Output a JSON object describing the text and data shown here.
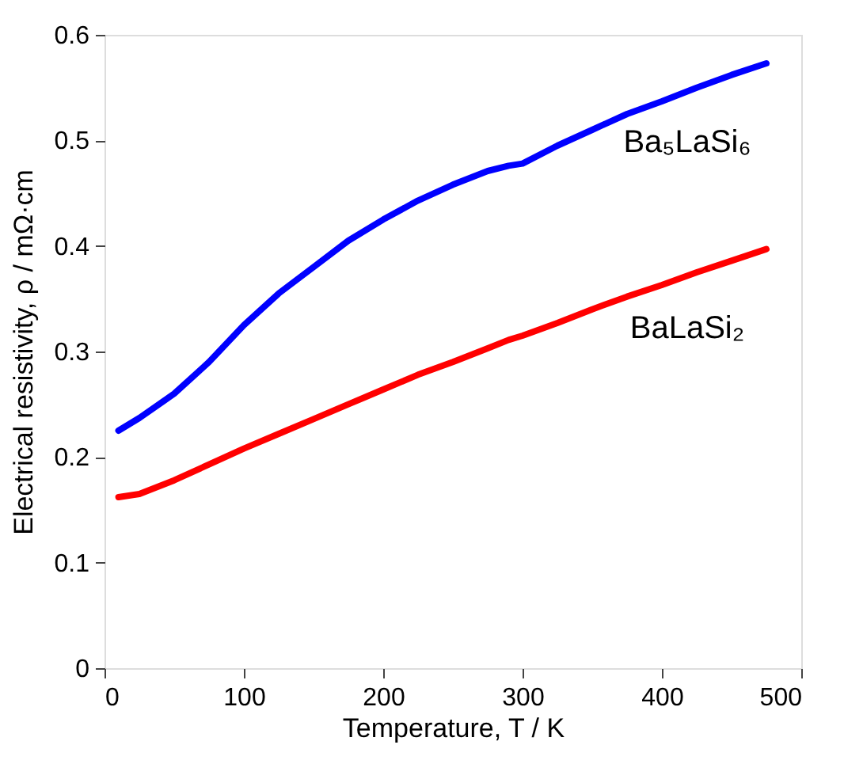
{
  "chart_data": {
    "type": "line",
    "xlabel": "Temperature,  T / K",
    "ylabel": "Electrical resistivity, ρ / mΩ·cm",
    "x": [
      10,
      25,
      50,
      75,
      100,
      125,
      150,
      175,
      200,
      225,
      250,
      275,
      290,
      300,
      325,
      350,
      375,
      400,
      425,
      450,
      475
    ],
    "series": [
      {
        "name": "Ba₅LaSi₆",
        "color": "#0000ff",
        "values": [
          0.225,
          0.237,
          0.26,
          0.29,
          0.325,
          0.355,
          0.38,
          0.405,
          0.425,
          0.443,
          0.458,
          0.471,
          0.476,
          0.478,
          0.495,
          0.51,
          0.525,
          0.537,
          0.55,
          0.562,
          0.573
        ]
      },
      {
        "name": "BaLaSi₂",
        "color": "#ff0000",
        "values": [
          0.162,
          0.165,
          0.178,
          0.193,
          0.208,
          0.222,
          0.236,
          0.25,
          0.264,
          0.278,
          0.29,
          0.303,
          0.311,
          0.315,
          0.327,
          0.34,
          0.352,
          0.363,
          0.375,
          0.386,
          0.397
        ]
      }
    ],
    "xlim": [
      0,
      500
    ],
    "xticks": [
      0,
      100,
      200,
      300,
      400,
      500
    ],
    "ylim": [
      0,
      0.6
    ],
    "yticks": [
      0,
      0.1,
      0.2,
      0.3,
      0.4,
      0.5,
      0.6
    ],
    "grid": false,
    "legend": false,
    "marker": "none",
    "line_style": "solid"
  }
}
